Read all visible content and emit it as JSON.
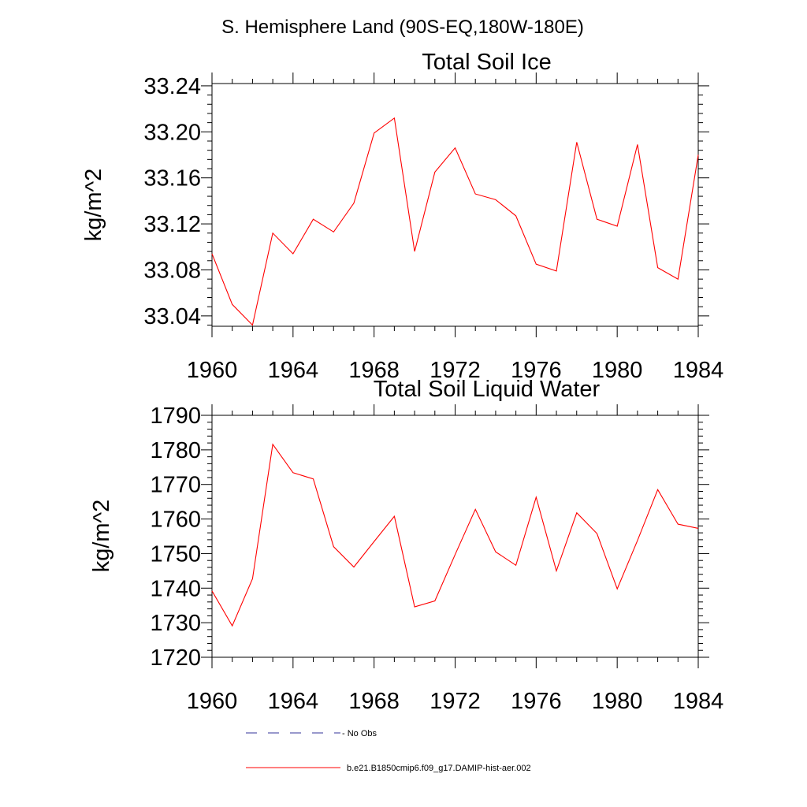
{
  "suptitle": "S. Hemisphere Land (90S-EQ,180W-180E)",
  "colors": {
    "model": "#ff0000",
    "obs": "#333399",
    "axis": "#000000"
  },
  "legend": {
    "obs_label": "- No Obs",
    "model_label": "b.e21.B1850cmip6.f09_g17.DAMIP-hist-aer.002"
  },
  "chart_data": [
    {
      "type": "line",
      "title": "Total Soil Ice",
      "ylabel": "kg/m^2",
      "xlabel": "",
      "xlim": [
        1960,
        1984
      ],
      "ylim": [
        33.031,
        33.242
      ],
      "xticks": [
        1960,
        1964,
        1968,
        1972,
        1976,
        1980,
        1984
      ],
      "xtick_labels": [
        "1960",
        "1964",
        "1968",
        "1972",
        "1976",
        "1980",
        "1984"
      ],
      "yticks": [
        33.04,
        33.08,
        33.12,
        33.16,
        33.2,
        33.24
      ],
      "ytick_labels": [
        "33.04",
        "33.08",
        "33.12",
        "33.16",
        "33.20",
        "33.24"
      ],
      "x": [
        1960,
        1961,
        1962,
        1963,
        1964,
        1965,
        1966,
        1967,
        1968,
        1969,
        1970,
        1971,
        1972,
        1973,
        1974,
        1975,
        1976,
        1977,
        1978,
        1979,
        1980,
        1981,
        1982,
        1983,
        1984
      ],
      "series": [
        {
          "values": [
            33.094,
            33.05,
            33.032,
            33.112,
            33.094,
            33.124,
            33.113,
            33.138,
            33.199,
            33.212,
            33.096,
            33.165,
            33.186,
            33.146,
            33.141,
            33.127,
            33.085,
            33.079,
            33.191,
            33.124,
            33.118,
            33.189,
            33.082,
            33.072,
            33.18
          ]
        }
      ]
    },
    {
      "type": "line",
      "title": "Total Soil Liquid Water",
      "ylabel": "kg/m^2",
      "xlabel": "",
      "xlim": [
        1960,
        1984
      ],
      "ylim": [
        1720,
        1790
      ],
      "xticks": [
        1960,
        1964,
        1968,
        1972,
        1976,
        1980,
        1984
      ],
      "xtick_labels": [
        "1960",
        "1964",
        "1968",
        "1972",
        "1976",
        "1980",
        "1984"
      ],
      "yticks": [
        1720,
        1730,
        1740,
        1750,
        1760,
        1770,
        1780,
        1790
      ],
      "ytick_labels": [
        "1720",
        "1730",
        "1740",
        "1750",
        "1760",
        "1770",
        "1780",
        "1790"
      ],
      "x": [
        1960,
        1961,
        1962,
        1963,
        1964,
        1965,
        1966,
        1967,
        1968,
        1969,
        1970,
        1971,
        1972,
        1973,
        1974,
        1975,
        1976,
        1977,
        1978,
        1979,
        1980,
        1981,
        1982,
        1983,
        1984
      ],
      "series": [
        {
          "values": [
            1739.2,
            1729.1,
            1742.7,
            1781.6,
            1773.4,
            1771.6,
            1752.0,
            1746.1,
            1753.5,
            1760.8,
            1734.6,
            1736.3,
            1749.7,
            1762.8,
            1750.5,
            1746.6,
            1766.3,
            1745.0,
            1761.8,
            1755.8,
            1739.8,
            1753.8,
            1768.5,
            1758.5,
            1757.3
          ]
        }
      ]
    }
  ]
}
